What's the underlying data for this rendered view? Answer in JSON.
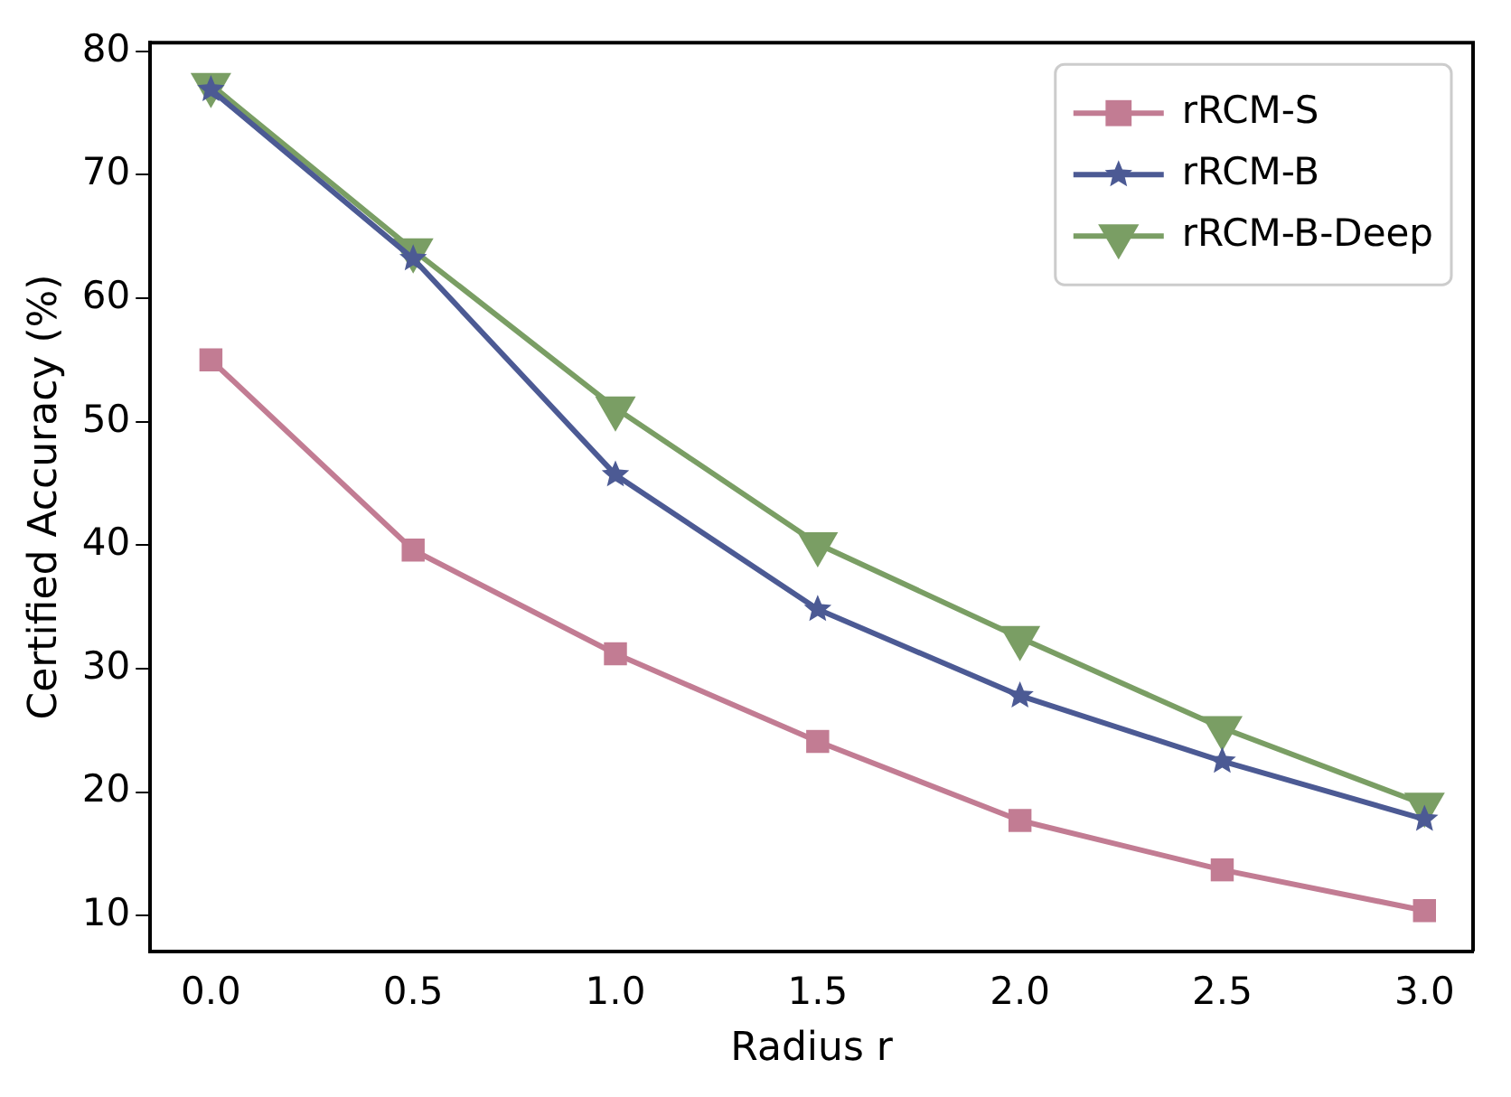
{
  "chart_data": {
    "type": "line",
    "xlabel": "Radius r",
    "ylabel": "Certified Accuracy (%)",
    "x": [
      0.0,
      0.5,
      1.0,
      1.5,
      2.0,
      2.5,
      3.0
    ],
    "series": [
      {
        "name": "rRCM-S",
        "color": "#c27c93",
        "marker": "square",
        "values": [
          55.0,
          39.6,
          31.2,
          24.1,
          17.7,
          13.7,
          10.4
        ]
      },
      {
        "name": "rRCM-B",
        "color": "#4c5a94",
        "marker": "star",
        "values": [
          76.9,
          63.2,
          45.7,
          34.8,
          27.8,
          22.5,
          17.8
        ]
      },
      {
        "name": "rRCM-B-Deep",
        "color": "#7a9e64",
        "marker": "triangle",
        "values": [
          77.3,
          63.9,
          51.1,
          40.1,
          32.5,
          25.2,
          19.0
        ]
      }
    ],
    "xlim": [
      -0.15,
      3.12
    ],
    "xticks": [
      {
        "value": 0,
        "label": "0.0"
      },
      {
        "value": 0.5,
        "label": "0.5"
      },
      {
        "value": 1,
        "label": "1.0"
      },
      {
        "value": 1.5,
        "label": "1.5"
      },
      {
        "value": 2,
        "label": "2.0"
      },
      {
        "value": 2.5,
        "label": "2.5"
      },
      {
        "value": 3,
        "label": "3.0"
      }
    ],
    "ylim": [
      7.1,
      80.7
    ],
    "yticks": [
      10,
      20,
      30,
      40,
      50,
      60,
      70,
      80
    ],
    "grid": false,
    "legend": "top right",
    "line_style": "solid"
  }
}
